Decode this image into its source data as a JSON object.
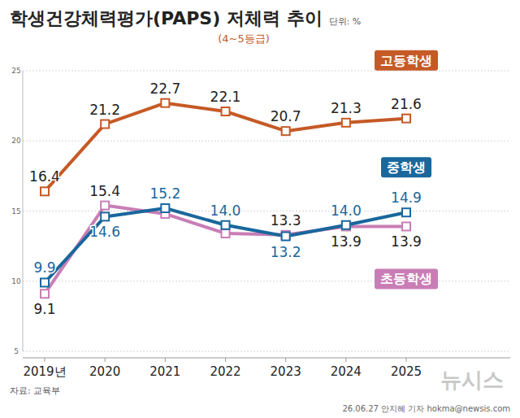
{
  "chart_data": {
    "type": "line",
    "title": "학생건강체력평가(PAPS) 저체력 추이",
    "subtitle": "(4~5등급)",
    "unit": "단위: %",
    "source": "자료: 교육부",
    "credit": "26.06.27 안지혜 기자 hokma@newsis.com",
    "watermark": "뉴시스",
    "categories": [
      "2019년",
      "2020",
      "2021",
      "2022",
      "2023",
      "2024",
      "2025"
    ],
    "series": [
      {
        "name": "고등학생",
        "color": "#c55a26",
        "values": [
          16.4,
          21.2,
          22.7,
          22.1,
          20.7,
          21.3,
          21.6
        ],
        "value_labels": [
          "16.4",
          "21.2",
          "22.7",
          "22.1",
          "20.7",
          "21.3",
          "21.6"
        ]
      },
      {
        "name": "중학생",
        "color": "#19679c",
        "values": [
          9.9,
          14.6,
          15.2,
          14.0,
          13.2,
          14.0,
          14.9
        ],
        "value_labels": [
          "9.9",
          "14.6",
          "15.2",
          "14.0",
          "13.2",
          "14.0",
          "14.9"
        ]
      },
      {
        "name": "초등학생",
        "color": "#c97db6",
        "values": [
          9.1,
          15.4,
          14.8,
          13.4,
          13.3,
          13.9,
          13.9
        ],
        "value_labels": [
          "9.1",
          "15.4",
          null,
          null,
          "13.3",
          "13.9",
          "13.9"
        ]
      }
    ],
    "ylim": [
      5,
      25
    ],
    "yticks": [
      5,
      10,
      15,
      20,
      25
    ],
    "grid": true,
    "data_labels": true,
    "marker": "square"
  }
}
